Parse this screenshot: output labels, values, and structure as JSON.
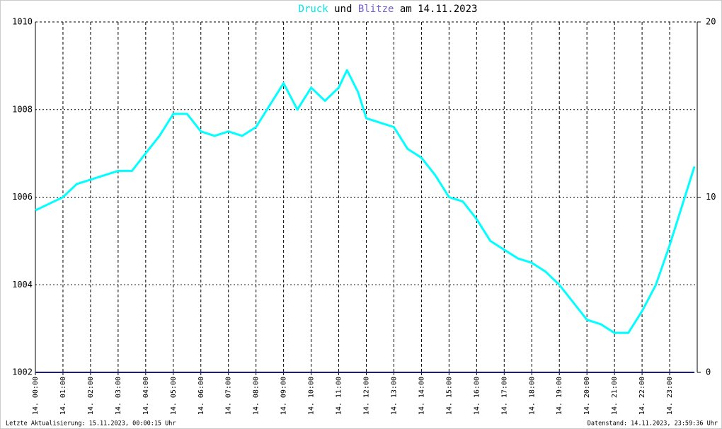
{
  "chart_data": {
    "type": "line",
    "title_parts": [
      "Druck",
      "und",
      "Blitze",
      "am 14.11.2023"
    ],
    "footer_left": "Letzte Aktualisierung: 15.11.2023, 00:00:15 Uhr",
    "footer_right": "Datenstand: 14.11.2023, 23:59:36 Uhr",
    "x": [
      0,
      0.5,
      1,
      1.5,
      2,
      2.5,
      3,
      3.5,
      4,
      4.5,
      5,
      5.5,
      6,
      6.5,
      7,
      7.5,
      8,
      8.5,
      9,
      9.5,
      10,
      10.5,
      11,
      11.3,
      11.7,
      12,
      12.5,
      13,
      13.5,
      14,
      14.5,
      15,
      15.5,
      16,
      16.5,
      17,
      17.5,
      18,
      18.5,
      19,
      19.5,
      20,
      20.5,
      21,
      21.5,
      22,
      22.5,
      23,
      23.5,
      23.9
    ],
    "series": [
      {
        "name": "Druck",
        "color": "#00ffff",
        "values": [
          1005.7,
          1005.85,
          1006.0,
          1006.3,
          1006.4,
          1006.5,
          1006.6,
          1006.6,
          1007.0,
          1007.4,
          1007.9,
          1007.9,
          1007.5,
          1007.4,
          1007.5,
          1007.4,
          1007.6,
          1008.1,
          1008.6,
          1008.0,
          1008.5,
          1008.2,
          1008.5,
          1008.9,
          1008.4,
          1007.8,
          1007.7,
          1007.6,
          1007.1,
          1006.9,
          1006.5,
          1006.0,
          1005.9,
          1005.5,
          1005.0,
          1004.8,
          1004.6,
          1004.5,
          1004.3,
          1004.0,
          1003.6,
          1003.2,
          1003.1,
          1002.9,
          1002.9,
          1003.4,
          1004.0,
          1004.9,
          1005.9,
          1006.7
        ]
      },
      {
        "name": "Blitze",
        "color": "#1c1c80",
        "axis": "y2",
        "values": [
          0,
          0,
          0,
          0,
          0,
          0,
          0,
          0,
          0,
          0,
          0,
          0,
          0,
          0,
          0,
          0,
          0,
          0,
          0,
          0,
          0,
          0,
          0,
          0,
          0,
          0,
          0,
          0,
          0,
          0,
          0,
          0,
          0,
          0,
          0,
          0,
          0,
          0,
          0,
          0,
          0,
          0,
          0,
          0,
          0,
          0,
          0,
          0,
          0,
          0
        ]
      }
    ],
    "xlim": [
      0,
      24
    ],
    "xticks": [
      {
        "value": 0,
        "label": "14. 00:00"
      },
      {
        "value": 1,
        "label": "14. 01:00"
      },
      {
        "value": 2,
        "label": "14. 02:00"
      },
      {
        "value": 3,
        "label": "14. 03:00"
      },
      {
        "value": 4,
        "label": "14. 04:00"
      },
      {
        "value": 5,
        "label": "14. 05:00"
      },
      {
        "value": 6,
        "label": "14. 06:00"
      },
      {
        "value": 7,
        "label": "14. 07:00"
      },
      {
        "value": 8,
        "label": "14. 08:00"
      },
      {
        "value": 9,
        "label": "14. 09:00"
      },
      {
        "value": 10,
        "label": "14. 10:00"
      },
      {
        "value": 11,
        "label": "14. 11:00"
      },
      {
        "value": 12,
        "label": "14. 12:00"
      },
      {
        "value": 13,
        "label": "14. 13:00"
      },
      {
        "value": 14,
        "label": "14. 14:00"
      },
      {
        "value": 15,
        "label": "14. 15:00"
      },
      {
        "value": 16,
        "label": "14. 16:00"
      },
      {
        "value": 17,
        "label": "14. 17:00"
      },
      {
        "value": 18,
        "label": "14. 18:00"
      },
      {
        "value": 19,
        "label": "14. 19:00"
      },
      {
        "value": 20,
        "label": "14. 20:00"
      },
      {
        "value": 21,
        "label": "14. 21:00"
      },
      {
        "value": 22,
        "label": "14. 22:00"
      },
      {
        "value": 23,
        "label": "14. 23:00"
      }
    ],
    "ylim": [
      1002,
      1010
    ],
    "yticks": [
      1002,
      1004,
      1006,
      1008,
      1010
    ],
    "y2lim": [
      0,
      20
    ],
    "y2ticks": [
      0,
      10,
      20
    ],
    "grid": true
  }
}
